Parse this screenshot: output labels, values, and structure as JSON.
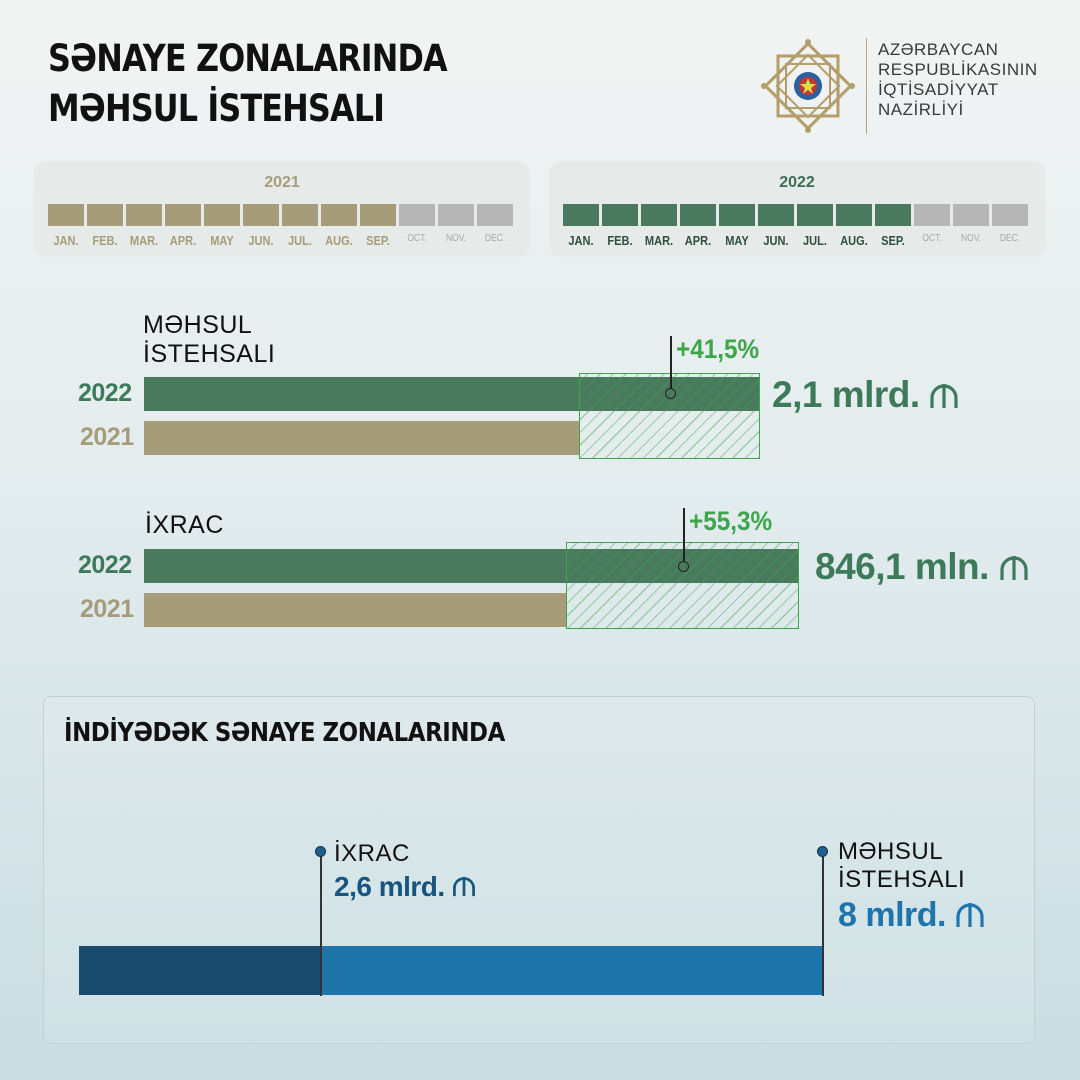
{
  "header": {
    "title_line1": "SƏNAYE ZONALARINDA",
    "title_line2": "MƏHSUL İSTEHSALI"
  },
  "ministry": {
    "line1": "AZƏRBAYCAN",
    "line2": "RESPUBLİKASININ",
    "line3": "İQTİSADİYYAT",
    "line4": "NAZİRLİYİ",
    "logo_icon": "ministry-emblem-icon"
  },
  "colors": {
    "green": "#4a7a5e",
    "tan": "#a69c7a",
    "growth": "#3ca64a",
    "navy": "#1a4a6e",
    "blue": "#1f74ac",
    "inactive": "#b6b6b6"
  },
  "calendars": [
    {
      "year": "2021",
      "months": [
        "JAN.",
        "FEB.",
        "MAR.",
        "APR.",
        "MAY",
        "JUN.",
        "JUL.",
        "AUG.",
        "SEP.",
        "OCT.",
        "NOV.",
        "DEC."
      ],
      "active_count": 9
    },
    {
      "year": "2022",
      "months": [
        "JAN.",
        "FEB.",
        "MAR.",
        "APR.",
        "MAY",
        "JUN.",
        "JUL.",
        "AUG.",
        "SEP.",
        "OCT.",
        "NOV.",
        "DEC."
      ],
      "active_count": 9
    }
  ],
  "chart_data": [
    {
      "type": "bar",
      "label_line1": "MƏHSUL",
      "label_line2": "İSTEHSALI",
      "categories": [
        "2022",
        "2021"
      ],
      "growth": "+41,5%",
      "value_2022_label": "2,1 mlrd.",
      "currency_icon": "manat-icon",
      "values_bln_azn": [
        2.1,
        1.484
      ]
    },
    {
      "type": "bar",
      "label_line1": "İXRAC",
      "categories": [
        "2022",
        "2021"
      ],
      "growth": "+55,3%",
      "value_2022_label": "846,1 mln.",
      "currency_icon": "manat-icon",
      "values_mln_azn": [
        846.1,
        544.8
      ]
    }
  ],
  "cumulative": {
    "title": "İNDİYƏDƏK SƏNAYE ZONALARINDA",
    "export_label": "İXRAC",
    "export_value": "2,6 mlrd.",
    "production_label_line1": "MƏHSUL",
    "production_label_line2": "İSTEHSALI",
    "production_value": "8 mlrd.",
    "export_bln": 2.6,
    "production_bln": 8
  }
}
